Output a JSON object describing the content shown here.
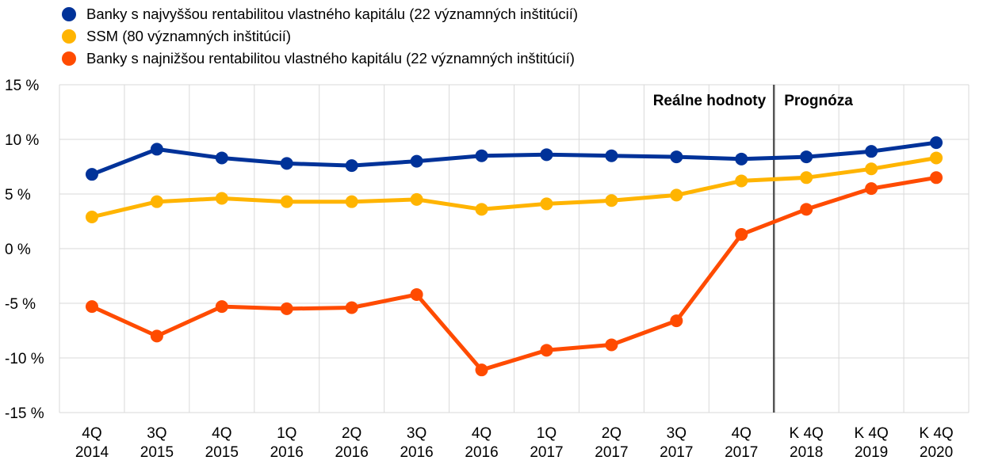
{
  "chart_data": {
    "type": "line",
    "categories": [
      [
        "4Q",
        "2014"
      ],
      [
        "3Q",
        "2015"
      ],
      [
        "4Q",
        "2015"
      ],
      [
        "1Q",
        "2016"
      ],
      [
        "2Q",
        "2016"
      ],
      [
        "3Q",
        "2016"
      ],
      [
        "4Q",
        "2016"
      ],
      [
        "1Q",
        "2017"
      ],
      [
        "2Q",
        "2017"
      ],
      [
        "3Q",
        "2017"
      ],
      [
        "4Q",
        "2017"
      ],
      [
        "K 4Q",
        "2018"
      ],
      [
        "K 4Q",
        "2019"
      ],
      [
        "K 4Q",
        "2020"
      ]
    ],
    "yticks": [
      "15 %",
      "10 %",
      "5 %",
      "0 %",
      "-5 %",
      "-10 %",
      "-15 %"
    ],
    "ylim": [
      -15,
      15
    ],
    "grid": true,
    "legend_position": "top-left",
    "series": [
      {
        "name": "Banky s najvyššou rentabilitou vlastného kapitálu (22 významných inštitúcií)",
        "color": "#003299",
        "values": [
          6.8,
          9.1,
          8.3,
          7.8,
          7.6,
          8.0,
          8.5,
          8.6,
          8.5,
          8.4,
          8.2,
          8.4,
          8.9,
          9.7
        ]
      },
      {
        "name": "SSM (80 významných inštitúcií)",
        "color": "#FFB400",
        "values": [
          2.9,
          4.3,
          4.6,
          4.3,
          4.3,
          4.5,
          3.6,
          4.1,
          4.4,
          4.9,
          6.2,
          6.5,
          7.3,
          8.3
        ]
      },
      {
        "name": "Banky s najnižšou rentabilitou vlastného kapitálu (22 významných inštitúcií)",
        "color": "#FF4B00",
        "values": [
          -5.3,
          -8.0,
          -5.3,
          -5.5,
          -5.4,
          -4.2,
          -11.1,
          -9.3,
          -8.8,
          -6.6,
          1.3,
          3.6,
          5.5,
          6.5
        ]
      }
    ],
    "annotations": {
      "actual": "Reálne hodnoty",
      "forecast": "Prognóza"
    },
    "divider_after_category": 10
  }
}
